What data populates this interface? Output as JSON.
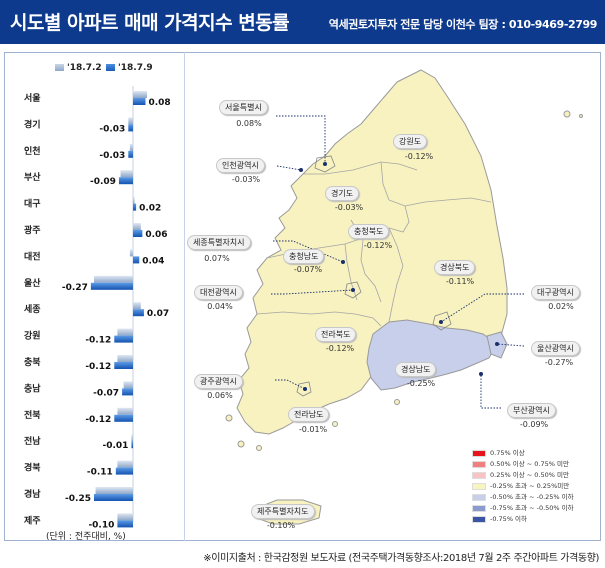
{
  "header": {
    "title": "시도별 아파트 매매 가격지수 변동률",
    "subtitle": "역세권토지투자 전문 담당 이천수 팀장 : 010-9469-2799"
  },
  "legend": {
    "series_a": "'18.7.2",
    "series_b": "'18.7.9"
  },
  "unit_note": "(단위 : 전주대비, %)",
  "source": "※이미지출처 : 한국감정원 보도자료 (전국주택가격동향조사:2018년 7월 2주 주간아파트 가격동향)",
  "chart_data": {
    "type": "bar",
    "orientation": "horizontal",
    "categories": [
      "서울",
      "경기",
      "인천",
      "부산",
      "대구",
      "광주",
      "대전",
      "울산",
      "세종",
      "강원",
      "충북",
      "충남",
      "전북",
      "전남",
      "경북",
      "경남",
      "제주"
    ],
    "series": [
      {
        "name": "'18.7.2",
        "values": [
          0.09,
          -0.03,
          -0.02,
          -0.08,
          0.01,
          0.05,
          -0.02,
          -0.25,
          0.05,
          -0.1,
          -0.1,
          -0.06,
          -0.1,
          -0.01,
          -0.1,
          -0.24,
          -0.1
        ]
      },
      {
        "name": "'18.7.9",
        "values": [
          0.08,
          -0.03,
          -0.03,
          -0.09,
          0.02,
          0.06,
          0.04,
          -0.27,
          0.07,
          -0.12,
          -0.12,
          -0.07,
          -0.12,
          -0.01,
          -0.11,
          -0.25,
          -0.1
        ]
      }
    ],
    "data_labels": [
      "0.08",
      "-0.03",
      "-0.03",
      "-0.09",
      "0.02",
      "0.06",
      "0.04",
      "-0.27",
      "0.07",
      "-0.12",
      "-0.12",
      "-0.07",
      "-0.12",
      "-0.01",
      "-0.11",
      "-0.25",
      "-0.10"
    ],
    "title": "시도별 아파트 매매 가격지수 변동률",
    "legend_position": "top-left",
    "grid": false,
    "colors": {
      "series_a": "#9fb4d2",
      "series_b": "#2266c4"
    }
  },
  "map": {
    "callouts": [
      {
        "id": "seoul",
        "name": "서울특별시",
        "value": "0.08%"
      },
      {
        "id": "incheon",
        "name": "인천광역시",
        "value": "-0.03%"
      },
      {
        "id": "gangwon",
        "name": "강원도",
        "value": "-0.12%"
      },
      {
        "id": "gyeonggi",
        "name": "경기도",
        "value": "-0.03%"
      },
      {
        "id": "sejong",
        "name": "세종특별자치시",
        "value": "0.07%"
      },
      {
        "id": "chungbuk",
        "name": "충청북도",
        "value": "-0.12%"
      },
      {
        "id": "chungnam",
        "name": "충청남도",
        "value": "-0.07%"
      },
      {
        "id": "gyeongbuk",
        "name": "경상북도",
        "value": "-0.11%"
      },
      {
        "id": "daejeon",
        "name": "대전광역시",
        "value": "0.04%"
      },
      {
        "id": "daegu",
        "name": "대구광역시",
        "value": "0.02%"
      },
      {
        "id": "jeonbuk",
        "name": "전라북도",
        "value": "-0.12%"
      },
      {
        "id": "ulsan",
        "name": "울산광역시",
        "value": "-0.27%"
      },
      {
        "id": "gyeongnam",
        "name": "경상남도",
        "value": "-0.25%"
      },
      {
        "id": "gwangju",
        "name": "광주광역시",
        "value": "0.06%"
      },
      {
        "id": "jeonnam",
        "name": "전라남도",
        "value": "-0.01%"
      },
      {
        "id": "busan",
        "name": "부산광역시",
        "value": "-0.09%"
      },
      {
        "id": "jeju",
        "name": "제주특별자치도",
        "value": "-0.10%"
      }
    ],
    "legend": [
      {
        "label": "0.75% 이상",
        "color": "#e8141c"
      },
      {
        "label": "0.50% 이상 ~ 0.75% 미만",
        "color": "#f07f7f"
      },
      {
        "label": "0.25% 이상 ~ 0.50% 미만",
        "color": "#f7c3c3"
      },
      {
        "label": "-0.25% 초과 ~ 0.25%미만",
        "color": "#f8f4c0"
      },
      {
        "label": "-0.50% 초과 ~ -0.25% 이하",
        "color": "#c7cfea"
      },
      {
        "label": "-0.75% 초과 ~ -0.50% 이하",
        "color": "#8b9bd0"
      },
      {
        "label": "-0.75% 이하",
        "color": "#3b54a6"
      }
    ],
    "colors": {
      "neutral_fill": "#f7f2c0",
      "decline_fill": "#c7cfea",
      "border": "#9a9a9a"
    }
  }
}
